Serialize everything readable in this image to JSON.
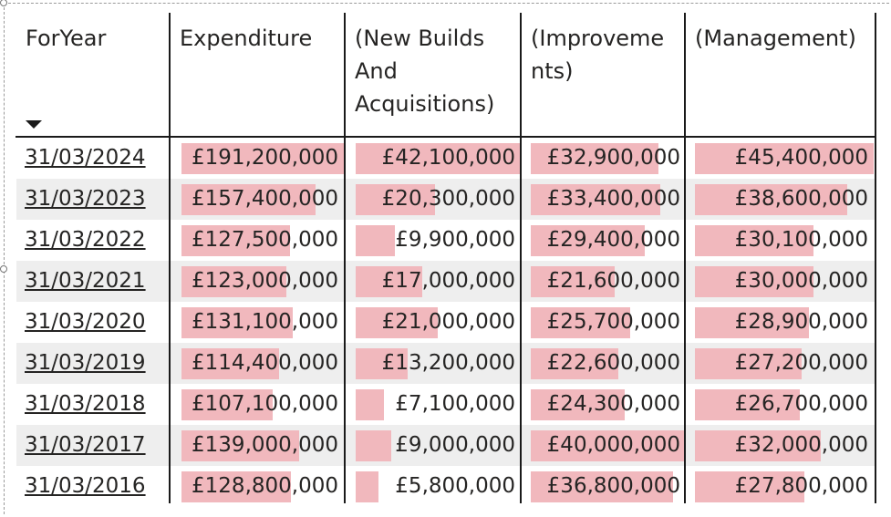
{
  "table": {
    "headers": {
      "for_year": "ForYear",
      "expenditure": "Expenditure",
      "new_builds": "(New Builds And Acquisitions)",
      "improvements": "(Improvements)",
      "management": "(Management)"
    },
    "sort": {
      "column": "for_year",
      "direction": "descending",
      "icon": "caret-down-icon"
    },
    "bar_color": "#f1b8bd",
    "rows": [
      {
        "for_year": "31/03/2024",
        "expenditure": "£191,200,000",
        "new_builds": "£42,100,000",
        "improvements": "£32,900,000",
        "management": "£45,400,000"
      },
      {
        "for_year": "31/03/2023",
        "expenditure": "£157,400,000",
        "new_builds": "£20,300,000",
        "improvements": "£33,400,000",
        "management": "£38,600,000"
      },
      {
        "for_year": "31/03/2022",
        "expenditure": "£127,500,000",
        "new_builds": "£9,900,000",
        "improvements": "£29,400,000",
        "management": "£30,100,000"
      },
      {
        "for_year": "31/03/2021",
        "expenditure": "£123,000,000",
        "new_builds": "£17,000,000",
        "improvements": "£21,600,000",
        "management": "£30,000,000"
      },
      {
        "for_year": "31/03/2020",
        "expenditure": "£131,100,000",
        "new_builds": "£21,000,000",
        "improvements": "£25,700,000",
        "management": "£28,900,000"
      },
      {
        "for_year": "31/03/2019",
        "expenditure": "£114,400,000",
        "new_builds": "£13,200,000",
        "improvements": "£22,600,000",
        "management": "£27,200,000"
      },
      {
        "for_year": "31/03/2018",
        "expenditure": "£107,100,000",
        "new_builds": "£7,100,000",
        "improvements": "£24,300,000",
        "management": "£26,700,000"
      },
      {
        "for_year": "31/03/2017",
        "expenditure": "£139,000,000",
        "new_builds": "£9,000,000",
        "improvements": "£40,000,000",
        "management": "£32,000,000"
      },
      {
        "for_year": "31/03/2016",
        "expenditure": "£128,800,000",
        "new_builds": "£5,800,000",
        "improvements": "£36,800,000",
        "management": "£27,800,000"
      }
    ]
  }
}
